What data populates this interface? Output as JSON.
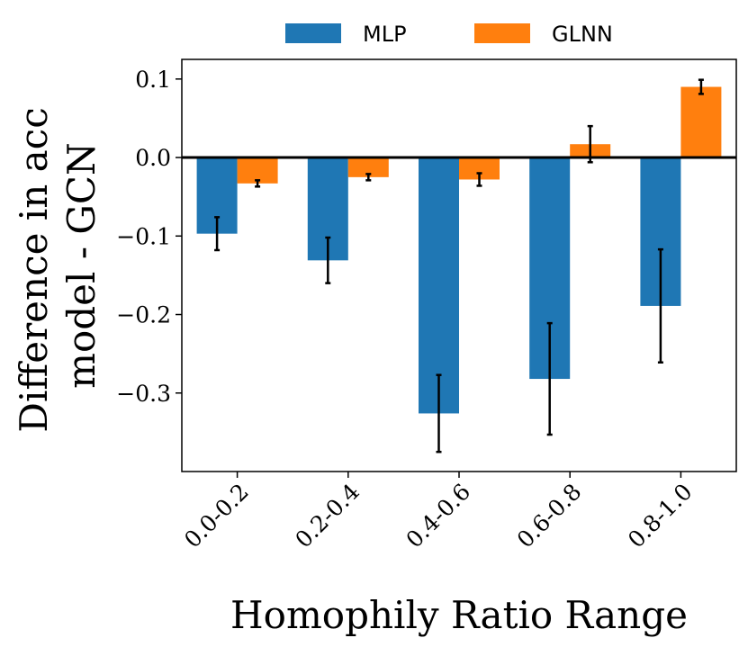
{
  "chart_data": {
    "type": "bar",
    "title": "",
    "xlabel": "Homophily Ratio Range",
    "ylabel_lines": [
      "Difference in acc",
      "model - GCN"
    ],
    "categories": [
      "0.0-0.2",
      "0.2-0.4",
      "0.4-0.6",
      "0.6-0.8",
      "0.8-1.0"
    ],
    "ylim": [
      -0.4,
      0.125
    ],
    "yticks": [
      0.1,
      0.0,
      -0.1,
      -0.2,
      -0.3
    ],
    "ytick_labels": [
      "0.1",
      "0.0",
      "−0.1",
      "−0.2",
      "−0.3"
    ],
    "zero_line": true,
    "legend_position": "top-center",
    "series": [
      {
        "name": "MLP",
        "color": "#1f77b4",
        "values": [
          -0.097,
          -0.131,
          -0.326,
          -0.282,
          -0.189
        ],
        "errors": [
          0.021,
          0.029,
          0.049,
          0.071,
          0.072
        ]
      },
      {
        "name": "GLNN",
        "color": "#ff7f0e",
        "values": [
          -0.033,
          -0.025,
          -0.028,
          0.017,
          0.09
        ],
        "errors": [
          0.004,
          0.004,
          0.008,
          0.023,
          0.009
        ]
      }
    ]
  }
}
